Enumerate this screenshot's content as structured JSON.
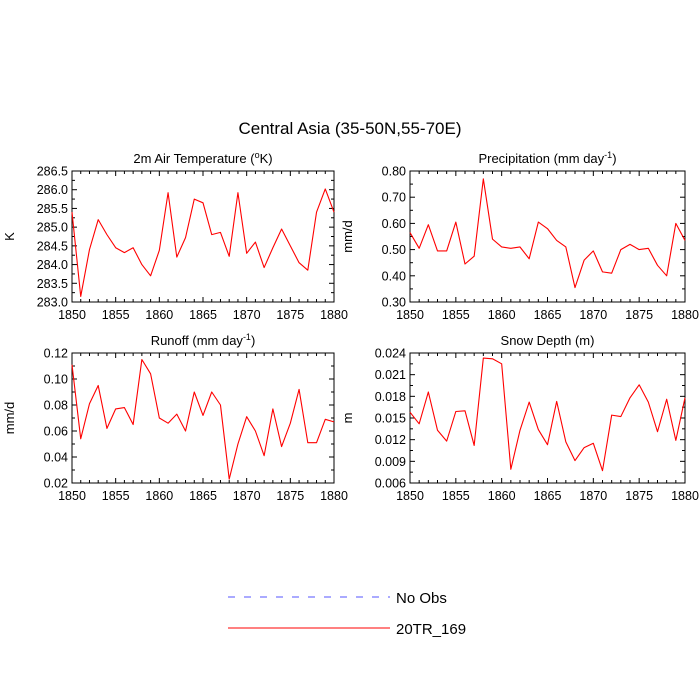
{
  "title": "Central Asia (35-50N,55-70E)",
  "colors": {
    "series": "#ff0000",
    "obs": "#5555ff"
  },
  "legend": {
    "obs_label": "No Obs",
    "model_label": "20TR_169"
  },
  "chart_data": [
    {
      "type": "line",
      "title_main": "2m Air Temperature (",
      "title_sup": "o",
      "title_tail": "K)",
      "ylabel": "K",
      "ylim": [
        283.0,
        286.5
      ],
      "yticks": [
        283.0,
        283.5,
        284.0,
        284.5,
        285.0,
        285.5,
        286.0,
        286.5
      ],
      "ytick_labels": [
        "283.0",
        "283.5",
        "284.0",
        "284.5",
        "285.0",
        "285.5",
        "286.0",
        "286.5"
      ],
      "xlim": [
        1850,
        1880
      ],
      "xticks": [
        1850,
        1855,
        1860,
        1865,
        1870,
        1875,
        1880
      ],
      "xtick_labels": [
        "1850",
        "1855",
        "1860",
        "1865",
        "1870",
        "1875",
        "1880"
      ],
      "x": [
        1850,
        1851,
        1852,
        1853,
        1854,
        1855,
        1856,
        1857,
        1858,
        1859,
        1860,
        1861,
        1862,
        1863,
        1864,
        1865,
        1866,
        1867,
        1868,
        1869,
        1870,
        1871,
        1872,
        1873,
        1874,
        1875,
        1876,
        1877,
        1878,
        1879,
        1880
      ],
      "series": [
        {
          "values": [
            285.4,
            283.15,
            284.4,
            285.2,
            284.8,
            284.45,
            284.32,
            284.45,
            284.0,
            283.7,
            284.38,
            285.92,
            284.2,
            284.72,
            285.75,
            285.65,
            284.8,
            284.86,
            284.22,
            285.92,
            284.3,
            284.6,
            283.92,
            284.45,
            284.95,
            284.5,
            284.05,
            283.85,
            285.4,
            286.02,
            285.4
          ]
        }
      ]
    },
    {
      "type": "line",
      "title_main": "Precipitation (mm day",
      "title_sup": "-1",
      "title_tail": ")",
      "ylabel": "mm/d",
      "ylim": [
        0.3,
        0.8
      ],
      "yticks": [
        0.3,
        0.4,
        0.5,
        0.6,
        0.7,
        0.8
      ],
      "ytick_labels": [
        "0.30",
        "0.40",
        "0.50",
        "0.60",
        "0.70",
        "0.80"
      ],
      "xlim": [
        1850,
        1880
      ],
      "xticks": [
        1850,
        1855,
        1860,
        1865,
        1870,
        1875,
        1880
      ],
      "xtick_labels": [
        "1850",
        "1855",
        "1860",
        "1865",
        "1870",
        "1875",
        "1880"
      ],
      "x": [
        1850,
        1851,
        1852,
        1853,
        1854,
        1855,
        1856,
        1857,
        1858,
        1859,
        1860,
        1861,
        1862,
        1863,
        1864,
        1865,
        1866,
        1867,
        1868,
        1869,
        1870,
        1871,
        1872,
        1873,
        1874,
        1875,
        1876,
        1877,
        1878,
        1879,
        1880
      ],
      "series": [
        {
          "values": [
            0.565,
            0.505,
            0.595,
            0.495,
            0.495,
            0.605,
            0.445,
            0.475,
            0.77,
            0.54,
            0.51,
            0.505,
            0.51,
            0.465,
            0.605,
            0.58,
            0.535,
            0.51,
            0.355,
            0.46,
            0.495,
            0.415,
            0.41,
            0.5,
            0.52,
            0.5,
            0.505,
            0.44,
            0.4,
            0.6,
            0.535
          ]
        }
      ]
    },
    {
      "type": "line",
      "title_main": "Runoff (mm day",
      "title_sup": "-1",
      "title_tail": ")",
      "ylabel": "mm/d",
      "ylim": [
        0.02,
        0.12
      ],
      "yticks": [
        0.02,
        0.04,
        0.06,
        0.08,
        0.1,
        0.12
      ],
      "ytick_labels": [
        "0.02",
        "0.04",
        "0.06",
        "0.08",
        "0.10",
        "0.12"
      ],
      "xlim": [
        1850,
        1880
      ],
      "xticks": [
        1850,
        1855,
        1860,
        1865,
        1870,
        1875,
        1880
      ],
      "xtick_labels": [
        "1850",
        "1855",
        "1860",
        "1865",
        "1870",
        "1875",
        "1880"
      ],
      "x": [
        1850,
        1851,
        1852,
        1853,
        1854,
        1855,
        1856,
        1857,
        1858,
        1859,
        1860,
        1861,
        1862,
        1863,
        1864,
        1865,
        1866,
        1867,
        1868,
        1869,
        1870,
        1871,
        1872,
        1873,
        1874,
        1875,
        1876,
        1877,
        1878,
        1879,
        1880
      ],
      "series": [
        {
          "values": [
            0.111,
            0.054,
            0.081,
            0.095,
            0.062,
            0.077,
            0.078,
            0.065,
            0.115,
            0.104,
            0.07,
            0.066,
            0.073,
            0.06,
            0.09,
            0.072,
            0.09,
            0.08,
            0.023,
            0.05,
            0.071,
            0.06,
            0.041,
            0.077,
            0.048,
            0.066,
            0.092,
            0.051,
            0.051,
            0.069,
            0.067
          ]
        }
      ]
    },
    {
      "type": "line",
      "title_main": "Snow Depth (m)",
      "title_sup": "",
      "title_tail": "",
      "ylabel": "m",
      "ylim": [
        0.006,
        0.024
      ],
      "yticks": [
        0.006,
        0.009,
        0.012,
        0.015,
        0.018,
        0.021,
        0.024
      ],
      "ytick_labels": [
        "0.006",
        "0.009",
        "0.012",
        "0.015",
        "0.018",
        "0.021",
        "0.024"
      ],
      "xlim": [
        1850,
        1880
      ],
      "xticks": [
        1850,
        1855,
        1860,
        1865,
        1870,
        1875,
        1880
      ],
      "xtick_labels": [
        "1850",
        "1855",
        "1860",
        "1865",
        "1870",
        "1875",
        "1880"
      ],
      "x": [
        1850,
        1851,
        1852,
        1853,
        1854,
        1855,
        1856,
        1857,
        1858,
        1859,
        1860,
        1861,
        1862,
        1863,
        1864,
        1865,
        1866,
        1867,
        1868,
        1869,
        1870,
        1871,
        1872,
        1873,
        1874,
        1875,
        1876,
        1877,
        1878,
        1879,
        1880
      ],
      "series": [
        {
          "values": [
            0.0158,
            0.0142,
            0.0186,
            0.0133,
            0.0118,
            0.0159,
            0.016,
            0.0112,
            0.0233,
            0.0232,
            0.0225,
            0.0079,
            0.0133,
            0.0172,
            0.0134,
            0.0113,
            0.0173,
            0.0117,
            0.0091,
            0.0109,
            0.0115,
            0.0077,
            0.0154,
            0.0152,
            0.0178,
            0.0196,
            0.0172,
            0.0131,
            0.0176,
            0.0119,
            0.0178
          ]
        }
      ]
    }
  ]
}
